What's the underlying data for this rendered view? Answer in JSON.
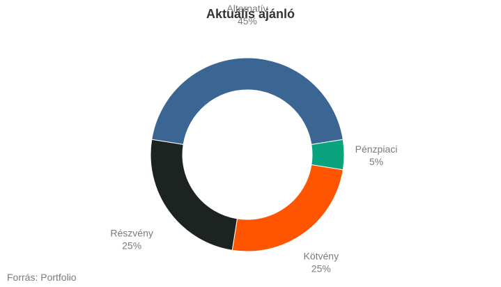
{
  "chart_data": {
    "type": "pie",
    "title": "Aktuális ajánló",
    "categories": [
      "Alternatív",
      "Pénzpiaci",
      "Kötvény",
      "Részvény"
    ],
    "values": [
      45,
      5,
      25,
      25
    ],
    "value_labels": [
      "45%",
      "5%",
      "25%",
      "25%"
    ],
    "colors": [
      "#3b6592",
      "#0ba37d",
      "#ff5500",
      "#1c2320"
    ],
    "donut": true,
    "legend": "none"
  },
  "source": "Forrás: Portfolio"
}
